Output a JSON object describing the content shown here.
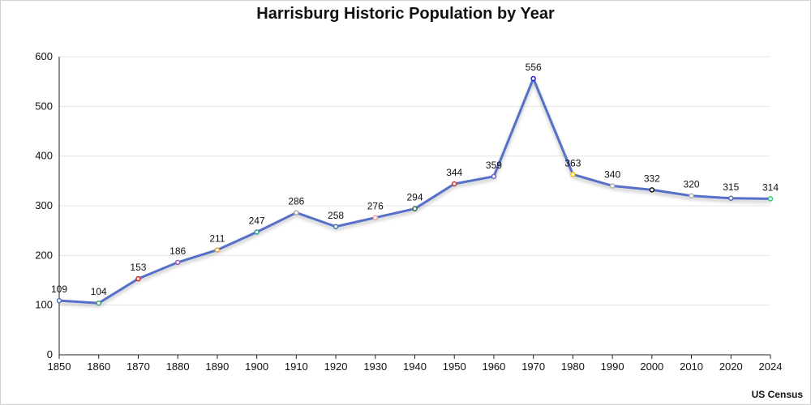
{
  "chart_data": {
    "type": "line",
    "title": "Harrisburg Historic Population by Year",
    "source": "US Census",
    "xlabel": "",
    "ylabel": "",
    "ylim": [
      0,
      600
    ],
    "yticks": [
      0,
      100,
      200,
      300,
      400,
      500,
      600
    ],
    "grid": true,
    "x": [
      "1850",
      "1860",
      "1870",
      "1880",
      "1890",
      "1900",
      "1910",
      "1920",
      "1930",
      "1940",
      "1950",
      "1960",
      "1970",
      "1980",
      "1990",
      "2000",
      "2010",
      "2020",
      "2024"
    ],
    "series": [
      {
        "values": [
          109,
          104,
          153,
          186,
          211,
          247,
          286,
          258,
          276,
          294,
          344,
          359,
          556,
          363,
          340,
          332,
          320,
          315,
          314
        ],
        "line_color": "#5470c6",
        "marker_colors": [
          "#5470c6",
          "#3ba272",
          "#d62728",
          "#9b59b6",
          "#e6a23c",
          "#2a9d8f",
          "#aaaaaa",
          "#3a7ca5",
          "#e8a0a0",
          "#2e7d32",
          "#c0392b",
          "#6a5acd",
          "#1f1fdd",
          "#f1c40f",
          "#b0b0b0",
          "#111111",
          "#b0b0b0",
          "#5470c6",
          "#2ecc71"
        ]
      }
    ]
  }
}
